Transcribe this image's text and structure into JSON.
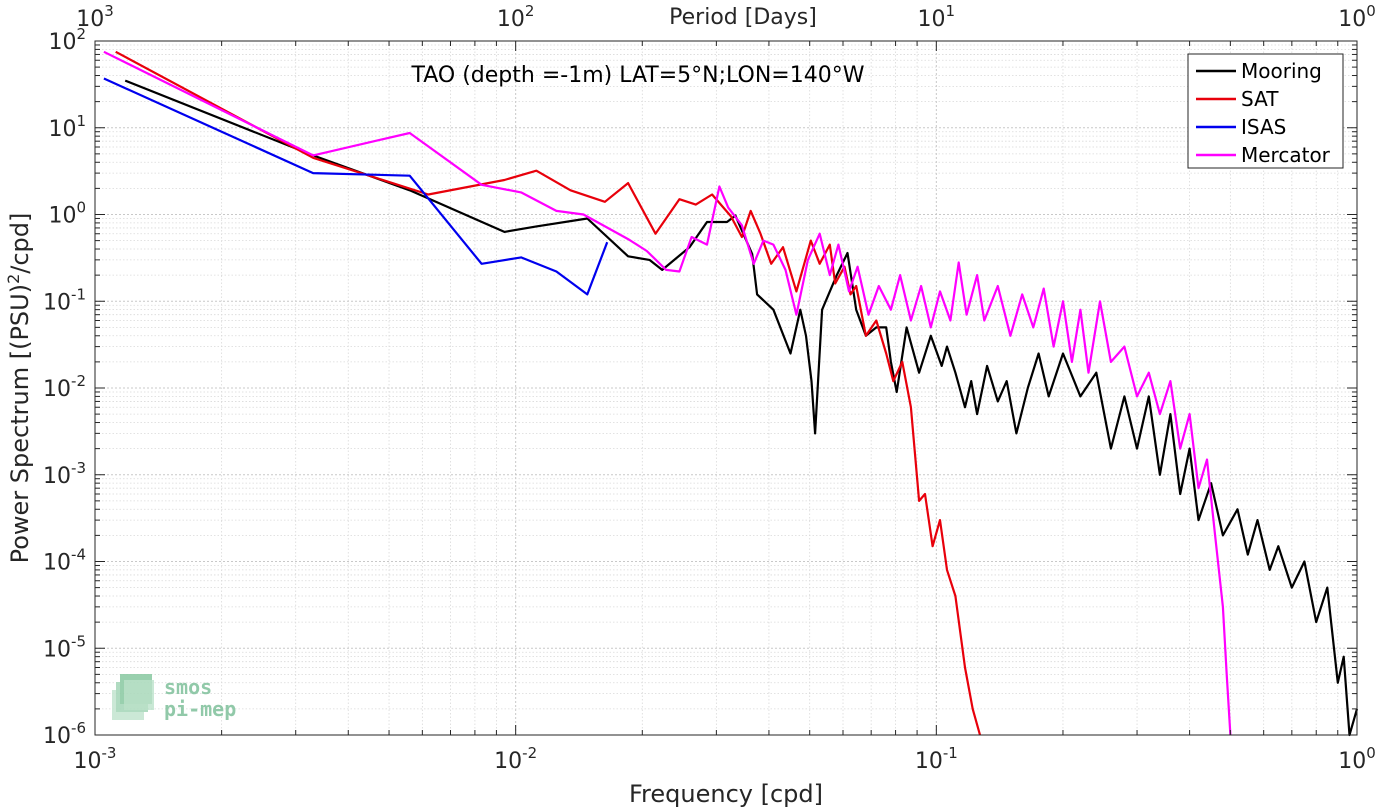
{
  "chart_data": {
    "type": "line",
    "title": "TAO (depth =-1m) LAT=5°N;LON=140°W",
    "xlabel": "Frequency [cpd]",
    "ylabel_main": "Power Spectrum [(PSU)",
    "ylabel_sup": "2",
    "ylabel_tail": "/cpd]",
    "top_axis_label": "Period [Days]",
    "x_scale": "log",
    "y_scale": "log",
    "xlim": [
      0.001,
      1
    ],
    "ylim": [
      1e-06,
      100
    ],
    "grid": true,
    "minor_grid": true,
    "legend_position": "top-right",
    "x_ticks": [
      {
        "value": 0.001,
        "base": "10",
        "exp": "-3"
      },
      {
        "value": 0.01,
        "base": "10",
        "exp": "-2"
      },
      {
        "value": 0.1,
        "base": "10",
        "exp": "-1"
      },
      {
        "value": 1,
        "base": "10",
        "exp": "0"
      }
    ],
    "top_ticks": [
      {
        "value": 0.001,
        "base": "10",
        "exp": "3"
      },
      {
        "value": 0.01,
        "base": "10",
        "exp": "2"
      },
      {
        "value": 0.1,
        "base": "10",
        "exp": "1"
      },
      {
        "value": 1,
        "base": "10",
        "exp": "0"
      }
    ],
    "y_ticks": [
      {
        "value": 100,
        "base": "10",
        "exp": "2"
      },
      {
        "value": 10,
        "base": "10",
        "exp": "1"
      },
      {
        "value": 1,
        "base": "10",
        "exp": "0"
      },
      {
        "value": 0.1,
        "base": "10",
        "exp": "-1"
      },
      {
        "value": 0.01,
        "base": "10",
        "exp": "-2"
      },
      {
        "value": 0.001,
        "base": "10",
        "exp": "-3"
      },
      {
        "value": 0.0001,
        "base": "10",
        "exp": "-4"
      },
      {
        "value": 1e-05,
        "base": "10",
        "exp": "-5"
      },
      {
        "value": 1e-06,
        "base": "10",
        "exp": "-6"
      }
    ],
    "series": [
      {
        "name": "Mooring",
        "color": "#000000",
        "points": [
          [
            0.00118,
            35
          ],
          [
            0.0033,
            4.8
          ],
          [
            0.0056,
            1.9
          ],
          [
            0.0094,
            0.63
          ],
          [
            0.0112,
            0.73
          ],
          [
            0.0148,
            0.9
          ],
          [
            0.0185,
            0.33
          ],
          [
            0.0208,
            0.3
          ],
          [
            0.0223,
            0.23
          ],
          [
            0.0259,
            0.42
          ],
          [
            0.0285,
            0.82
          ],
          [
            0.0318,
            0.82
          ],
          [
            0.0333,
            0.97
          ],
          [
            0.0365,
            0.35
          ],
          [
            0.0375,
            0.12
          ],
          [
            0.041,
            0.08
          ],
          [
            0.045,
            0.025
          ],
          [
            0.0475,
            0.08
          ],
          [
            0.049,
            0.04
          ],
          [
            0.0505,
            0.012
          ],
          [
            0.0515,
            0.003
          ],
          [
            0.0535,
            0.08
          ],
          [
            0.058,
            0.2
          ],
          [
            0.0615,
            0.36
          ],
          [
            0.0645,
            0.08
          ],
          [
            0.068,
            0.04
          ],
          [
            0.072,
            0.05
          ],
          [
            0.076,
            0.05
          ],
          [
            0.078,
            0.02
          ],
          [
            0.0805,
            0.009
          ],
          [
            0.085,
            0.05
          ],
          [
            0.091,
            0.015
          ],
          [
            0.097,
            0.04
          ],
          [
            0.103,
            0.018
          ],
          [
            0.106,
            0.03
          ],
          [
            0.111,
            0.015
          ],
          [
            0.117,
            0.006
          ],
          [
            0.121,
            0.012
          ],
          [
            0.125,
            0.005
          ],
          [
            0.132,
            0.018
          ],
          [
            0.14,
            0.007
          ],
          [
            0.147,
            0.012
          ],
          [
            0.155,
            0.003
          ],
          [
            0.165,
            0.01
          ],
          [
            0.175,
            0.025
          ],
          [
            0.185,
            0.008
          ],
          [
            0.2,
            0.025
          ],
          [
            0.22,
            0.008
          ],
          [
            0.24,
            0.015
          ],
          [
            0.26,
            0.002
          ],
          [
            0.28,
            0.008
          ],
          [
            0.3,
            0.002
          ],
          [
            0.32,
            0.008
          ],
          [
            0.34,
            0.001
          ],
          [
            0.36,
            0.005
          ],
          [
            0.38,
            0.0006
          ],
          [
            0.4,
            0.002
          ],
          [
            0.42,
            0.0003
          ],
          [
            0.45,
            0.0008
          ],
          [
            0.48,
            0.0002
          ],
          [
            0.52,
            0.0004
          ],
          [
            0.55,
            0.00012
          ],
          [
            0.58,
            0.0003
          ],
          [
            0.62,
            8e-05
          ],
          [
            0.65,
            0.00015
          ],
          [
            0.7,
            5e-05
          ],
          [
            0.75,
            0.0001
          ],
          [
            0.8,
            2e-05
          ],
          [
            0.85,
            5e-05
          ],
          [
            0.9,
            4e-06
          ],
          [
            0.93,
            8e-06
          ],
          [
            0.96,
            1e-06
          ],
          [
            1.0,
            2e-06
          ]
        ]
      },
      {
        "name": "SAT",
        "color": "#e8000b",
        "points": [
          [
            0.00112,
            75
          ],
          [
            0.0033,
            4.5
          ],
          [
            0.0062,
            1.7
          ],
          [
            0.0094,
            2.5
          ],
          [
            0.0112,
            3.2
          ],
          [
            0.0135,
            1.9
          ],
          [
            0.0163,
            1.4
          ],
          [
            0.0185,
            2.3
          ],
          [
            0.0215,
            0.6
          ],
          [
            0.0245,
            1.5
          ],
          [
            0.0268,
            1.3
          ],
          [
            0.0293,
            1.7
          ],
          [
            0.0325,
            0.95
          ],
          [
            0.0345,
            0.55
          ],
          [
            0.0362,
            1.1
          ],
          [
            0.0382,
            0.6
          ],
          [
            0.0405,
            0.27
          ],
          [
            0.0432,
            0.42
          ],
          [
            0.0465,
            0.13
          ],
          [
            0.0503,
            0.5
          ],
          [
            0.0528,
            0.27
          ],
          [
            0.0558,
            0.45
          ],
          [
            0.0575,
            0.16
          ],
          [
            0.0605,
            0.25
          ],
          [
            0.0625,
            0.12
          ],
          [
            0.0645,
            0.15
          ],
          [
            0.068,
            0.04
          ],
          [
            0.072,
            0.06
          ],
          [
            0.076,
            0.025
          ],
          [
            0.079,
            0.012
          ],
          [
            0.083,
            0.02
          ],
          [
            0.087,
            0.006
          ],
          [
            0.091,
            0.0005
          ],
          [
            0.094,
            0.0006
          ],
          [
            0.098,
            0.00015
          ],
          [
            0.102,
            0.0003
          ],
          [
            0.106,
            8e-05
          ],
          [
            0.111,
            4e-05
          ],
          [
            0.117,
            6e-06
          ],
          [
            0.122,
            2e-06
          ],
          [
            0.127,
            1e-06
          ]
        ]
      },
      {
        "name": "ISAS",
        "color": "#0000ee",
        "points": [
          [
            0.00105,
            37
          ],
          [
            0.0033,
            3.0
          ],
          [
            0.0056,
            2.8
          ],
          [
            0.0083,
            0.27
          ],
          [
            0.0103,
            0.32
          ],
          [
            0.0125,
            0.22
          ],
          [
            0.0148,
            0.12
          ],
          [
            0.0165,
            0.48
          ]
        ]
      },
      {
        "name": "Mercator",
        "color": "#ff00ff",
        "points": [
          [
            0.00105,
            75
          ],
          [
            0.0033,
            4.8
          ],
          [
            0.0056,
            8.7
          ],
          [
            0.0083,
            2.2
          ],
          [
            0.0103,
            1.8
          ],
          [
            0.0125,
            1.1
          ],
          [
            0.0145,
            1.0
          ],
          [
            0.0185,
            0.52
          ],
          [
            0.0205,
            0.38
          ],
          [
            0.0228,
            0.23
          ],
          [
            0.0245,
            0.22
          ],
          [
            0.0262,
            0.55
          ],
          [
            0.0285,
            0.45
          ],
          [
            0.0305,
            2.1
          ],
          [
            0.032,
            1.2
          ],
          [
            0.0345,
            0.75
          ],
          [
            0.0368,
            0.27
          ],
          [
            0.0388,
            0.5
          ],
          [
            0.041,
            0.45
          ],
          [
            0.0438,
            0.23
          ],
          [
            0.0465,
            0.07
          ],
          [
            0.0495,
            0.3
          ],
          [
            0.0528,
            0.6
          ],
          [
            0.0558,
            0.2
          ],
          [
            0.0585,
            0.45
          ],
          [
            0.062,
            0.13
          ],
          [
            0.065,
            0.25
          ],
          [
            0.069,
            0.07
          ],
          [
            0.073,
            0.15
          ],
          [
            0.078,
            0.08
          ],
          [
            0.082,
            0.2
          ],
          [
            0.087,
            0.06
          ],
          [
            0.092,
            0.15
          ],
          [
            0.097,
            0.05
          ],
          [
            0.102,
            0.13
          ],
          [
            0.108,
            0.06
          ],
          [
            0.113,
            0.28
          ],
          [
            0.118,
            0.07
          ],
          [
            0.125,
            0.2
          ],
          [
            0.13,
            0.06
          ],
          [
            0.14,
            0.15
          ],
          [
            0.15,
            0.04
          ],
          [
            0.16,
            0.12
          ],
          [
            0.17,
            0.05
          ],
          [
            0.18,
            0.14
          ],
          [
            0.19,
            0.03
          ],
          [
            0.2,
            0.1
          ],
          [
            0.21,
            0.02
          ],
          [
            0.22,
            0.08
          ],
          [
            0.23,
            0.015
          ],
          [
            0.245,
            0.1
          ],
          [
            0.26,
            0.02
          ],
          [
            0.28,
            0.03
          ],
          [
            0.3,
            0.008
          ],
          [
            0.32,
            0.015
          ],
          [
            0.34,
            0.005
          ],
          [
            0.36,
            0.012
          ],
          [
            0.38,
            0.002
          ],
          [
            0.4,
            0.005
          ],
          [
            0.42,
            0.0007
          ],
          [
            0.44,
            0.0015
          ],
          [
            0.46,
            0.0002
          ],
          [
            0.48,
            3e-05
          ],
          [
            0.49,
            5e-06
          ],
          [
            0.5,
            1e-06
          ]
        ]
      }
    ]
  }
}
